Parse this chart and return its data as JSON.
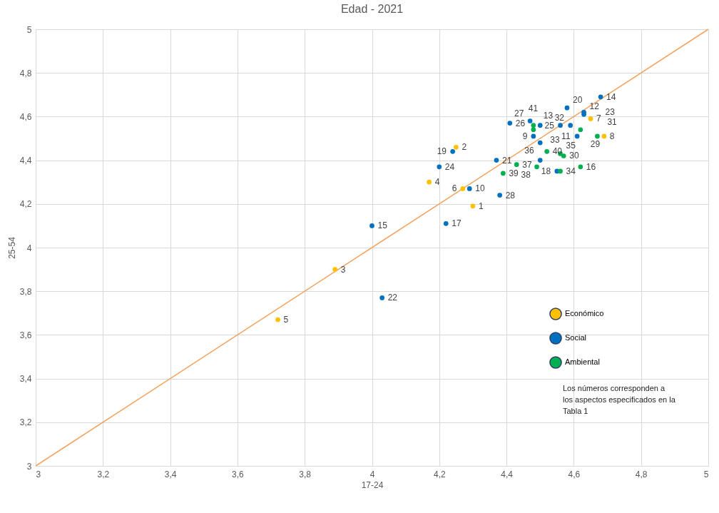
{
  "chart_data": {
    "type": "scatter",
    "title": "Edad - 2021",
    "xlabel": "17-24",
    "ylabel": "25-54",
    "xlim": [
      3,
      5
    ],
    "ylim": [
      3,
      5
    ],
    "xticks": [
      3,
      {
        "value": 3.2,
        "label": "3,2"
      },
      {
        "value": 3.4,
        "label": "3,4"
      },
      {
        "value": 3.6,
        "label": "3,6"
      },
      {
        "value": 3.8,
        "label": "3,8"
      },
      4,
      {
        "value": 4.2,
        "label": "4,2"
      },
      {
        "value": 4.4,
        "label": "4,4"
      },
      {
        "value": 4.6,
        "label": "4,6"
      },
      {
        "value": 4.8,
        "label": "4,8"
      },
      5
    ],
    "yticks": [
      3,
      {
        "value": 3.2,
        "label": "3,2"
      },
      {
        "value": 3.4,
        "label": "3,4"
      },
      {
        "value": 3.6,
        "label": "3,6"
      },
      {
        "value": 3.8,
        "label": "3,8"
      },
      4,
      {
        "value": 4.2,
        "label": "4,2"
      },
      {
        "value": 4.4,
        "label": "4,4"
      },
      {
        "value": 4.6,
        "label": "4,6"
      },
      {
        "value": 4.8,
        "label": "4,8"
      },
      5
    ],
    "grid": true,
    "legend": "bottom right",
    "annotations": [
      "Los números corresponden a los aspectos especificados en la Tabla 1",
      {
        "text": "1",
        "x": 4.3,
        "y": 4.19
      },
      {
        "text": "2",
        "x": 4.25,
        "y": 4.46
      },
      {
        "text": "3",
        "x": 3.89,
        "y": 3.9
      },
      {
        "text": "4",
        "x": 4.17,
        "y": 4.3
      },
      {
        "text": "5",
        "x": 3.72,
        "y": 3.67
      },
      {
        "text": "6",
        "x": 4.27,
        "y": 4.27
      },
      {
        "text": "7",
        "x": 4.65,
        "y": 4.59
      },
      {
        "text": "8",
        "x": 4.69,
        "y": 4.51
      },
      {
        "text": "9",
        "x": 4.48,
        "y": 4.51
      },
      {
        "text": "10",
        "x": 4.29,
        "y": 4.27
      },
      {
        "text": "11",
        "x": 4.61,
        "y": 4.51
      },
      {
        "text": "12",
        "x": 4.63,
        "y": 4.61
      },
      {
        "text": "13",
        "x": 4.48,
        "y": 4.54
      },
      {
        "text": "14",
        "x": 4.68,
        "y": 4.69
      },
      {
        "text": "15",
        "x": 4.0,
        "y": 4.1
      },
      {
        "text": "16",
        "x": 4.62,
        "y": 4.37
      },
      {
        "text": "17",
        "x": 4.22,
        "y": 4.11
      },
      {
        "text": "18",
        "x": 4.55,
        "y": 4.35
      },
      {
        "text": "19",
        "x": 4.24,
        "y": 4.44
      },
      {
        "text": "20",
        "x": 4.58,
        "y": 4.64
      },
      {
        "text": "21",
        "x": 4.37,
        "y": 4.4
      },
      {
        "text": "22",
        "x": 4.03,
        "y": 3.77
      },
      {
        "text": "23",
        "x": 4.63,
        "y": 4.62
      },
      {
        "text": "24",
        "x": 4.2,
        "y": 4.37
      },
      {
        "text": "25",
        "x": 4.56,
        "y": 4.56
      },
      {
        "text": "26",
        "x": 4.41,
        "y": 4.57
      },
      {
        "text": "27",
        "x": 4.47,
        "y": 4.58
      },
      {
        "text": "28",
        "x": 4.38,
        "y": 4.24
      },
      {
        "text": "29",
        "x": 4.62,
        "y": 4.54
      },
      {
        "text": "30",
        "x": 4.57,
        "y": 4.42
      },
      {
        "text": "31",
        "x": 4.67,
        "y": 4.51
      },
      {
        "text": "32",
        "x": 4.59,
        "y": 4.56
      },
      {
        "text": "33",
        "x": 4.5,
        "y": 4.56
      },
      {
        "text": "34",
        "x": 4.56,
        "y": 4.35
      },
      {
        "text": "35",
        "x": 4.56,
        "y": 4.43
      },
      {
        "text": "36",
        "x": 4.5,
        "y": 4.48
      },
      {
        "text": "37",
        "x": 4.43,
        "y": 4.38
      },
      {
        "text": "38",
        "x": 4.49,
        "y": 4.37
      },
      {
        "text": "39",
        "x": 4.39,
        "y": 4.34
      },
      {
        "text": "40",
        "x": 4.52,
        "y": 4.44
      },
      {
        "text": "41",
        "x": 4.48,
        "y": 4.56
      }
    ],
    "series": [
      {
        "type": "line",
        "color": "#f4a460",
        "x": [
          3,
          5
        ],
        "values": [
          3,
          5
        ]
      },
      {
        "name": "Económico",
        "color": "#ffc000",
        "marker": "circle",
        "x": [
          4.3,
          4.25,
          3.89,
          4.17,
          3.72,
          4.27,
          4.65,
          4.69
        ],
        "values": [
          4.19,
          4.46,
          3.9,
          4.3,
          3.67,
          4.27,
          4.59,
          4.51
        ]
      },
      {
        "name": "Social",
        "color": "#0070c0",
        "marker": "circle",
        "x": [
          4.48,
          4.29,
          4.61,
          4.63,
          4.68,
          4.0,
          4.22,
          4.55,
          4.24,
          4.58,
          4.37,
          4.03,
          4.63,
          4.2,
          4.56,
          4.41,
          4.47,
          4.38,
          4.59,
          4.5,
          4.5,
          4.5
        ],
        "values": [
          4.51,
          4.27,
          4.51,
          4.61,
          4.69,
          4.1,
          4.11,
          4.35,
          4.44,
          4.64,
          4.4,
          3.77,
          4.62,
          4.37,
          4.56,
          4.57,
          4.58,
          4.24,
          4.56,
          4.56,
          4.48,
          4.4
        ]
      },
      {
        "name": "Ambiental",
        "color": "#00b050",
        "marker": "circle",
        "x": [
          4.48,
          4.62,
          4.62,
          4.57,
          4.67,
          4.56,
          4.56,
          4.43,
          4.49,
          4.39,
          4.52,
          4.48
        ],
        "values": [
          4.54,
          4.37,
          4.54,
          4.42,
          4.51,
          4.35,
          4.43,
          4.38,
          4.37,
          4.34,
          4.44,
          4.56
        ]
      }
    ]
  }
}
